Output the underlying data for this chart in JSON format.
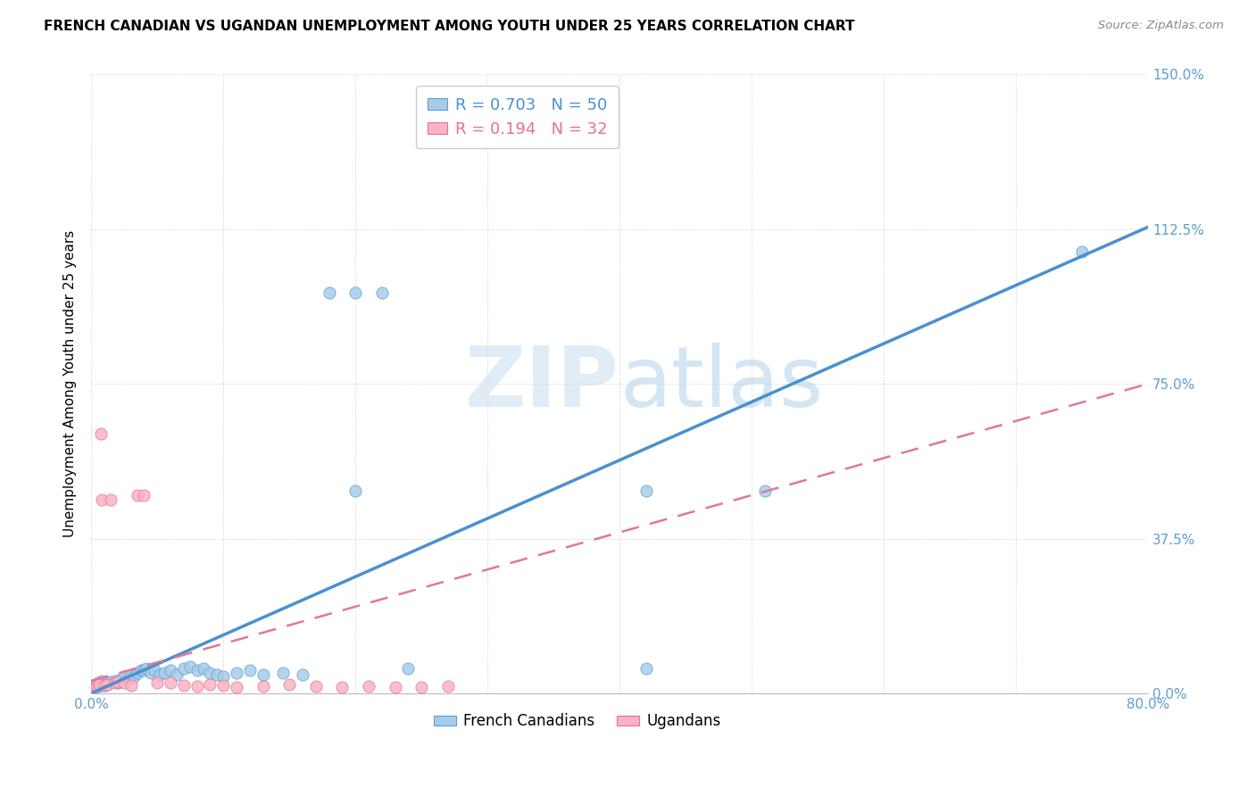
{
  "title": "FRENCH CANADIAN VS UGANDAN UNEMPLOYMENT AMONG YOUTH UNDER 25 YEARS CORRELATION CHART",
  "source": "Source: ZipAtlas.com",
  "ylabel": "Unemployment Among Youth under 25 years",
  "xlim": [
    0.0,
    0.8
  ],
  "ylim": [
    0.0,
    1.5
  ],
  "yticks": [
    0.0,
    0.375,
    0.75,
    1.125,
    1.5
  ],
  "ytick_labels": [
    "0.0%",
    "37.5%",
    "75.0%",
    "112.5%",
    "150.0%"
  ],
  "xtick_positions": [
    0.0,
    0.1,
    0.2,
    0.3,
    0.4,
    0.5,
    0.6,
    0.7,
    0.8
  ],
  "xtick_labels": [
    "0.0%",
    "",
    "",
    "",
    "",
    "",
    "",
    "",
    "80.0%"
  ],
  "blue_color": "#a8cce8",
  "pink_color": "#f9b4c4",
  "blue_edge_color": "#5a9fd4",
  "pink_edge_color": "#e87090",
  "blue_line_color": "#4a90d0",
  "pink_line_color": "#e07898",
  "tick_color": "#5a9fd4",
  "legend_blue_r": "0.703",
  "legend_blue_n": "50",
  "legend_pink_r": "0.194",
  "legend_pink_n": "32",
  "legend_label_blue": "French Canadians",
  "legend_label_pink": "Ugandans",
  "watermark_zip": "ZIP",
  "watermark_atlas": "atlas",
  "blue_scatter_x": [
    0.001,
    0.002,
    0.003,
    0.004,
    0.005,
    0.006,
    0.007,
    0.008,
    0.009,
    0.01,
    0.012,
    0.015,
    0.018,
    0.02,
    0.022,
    0.025,
    0.028,
    0.03,
    0.032,
    0.035,
    0.038,
    0.04,
    0.042,
    0.045,
    0.048,
    0.052,
    0.055,
    0.06,
    0.065,
    0.07,
    0.075,
    0.08,
    0.085,
    0.09,
    0.095,
    0.1,
    0.11,
    0.12,
    0.13,
    0.145,
    0.16,
    0.18,
    0.2,
    0.22,
    0.24,
    0.2,
    0.42,
    0.42,
    0.51,
    0.75
  ],
  "blue_scatter_y": [
    0.018,
    0.02,
    0.015,
    0.022,
    0.018,
    0.025,
    0.02,
    0.03,
    0.025,
    0.02,
    0.022,
    0.028,
    0.03,
    0.025,
    0.035,
    0.04,
    0.035,
    0.045,
    0.04,
    0.05,
    0.055,
    0.055,
    0.06,
    0.05,
    0.055,
    0.045,
    0.05,
    0.055,
    0.045,
    0.06,
    0.065,
    0.055,
    0.06,
    0.05,
    0.045,
    0.04,
    0.05,
    0.055,
    0.045,
    0.05,
    0.045,
    0.97,
    0.97,
    0.97,
    0.06,
    0.49,
    0.06,
    0.49,
    0.49,
    1.07
  ],
  "pink_scatter_x": [
    0.001,
    0.002,
    0.003,
    0.004,
    0.005,
    0.006,
    0.007,
    0.008,
    0.01,
    0.012,
    0.015,
    0.018,
    0.02,
    0.025,
    0.03,
    0.035,
    0.04,
    0.05,
    0.06,
    0.07,
    0.08,
    0.09,
    0.1,
    0.11,
    0.13,
    0.15,
    0.17,
    0.19,
    0.21,
    0.23,
    0.25,
    0.27
  ],
  "pink_scatter_y": [
    0.02,
    0.018,
    0.022,
    0.02,
    0.025,
    0.022,
    0.63,
    0.47,
    0.02,
    0.022,
    0.47,
    0.025,
    0.028,
    0.025,
    0.02,
    0.48,
    0.48,
    0.025,
    0.025,
    0.02,
    0.018,
    0.022,
    0.02,
    0.015,
    0.018,
    0.022,
    0.018,
    0.015,
    0.018,
    0.015,
    0.015,
    0.018
  ],
  "blue_line_x": [
    0.0,
    0.8
  ],
  "blue_line_y": [
    0.0,
    1.13
  ],
  "pink_line_x": [
    0.0,
    0.8
  ],
  "pink_line_y": [
    0.03,
    0.75
  ]
}
